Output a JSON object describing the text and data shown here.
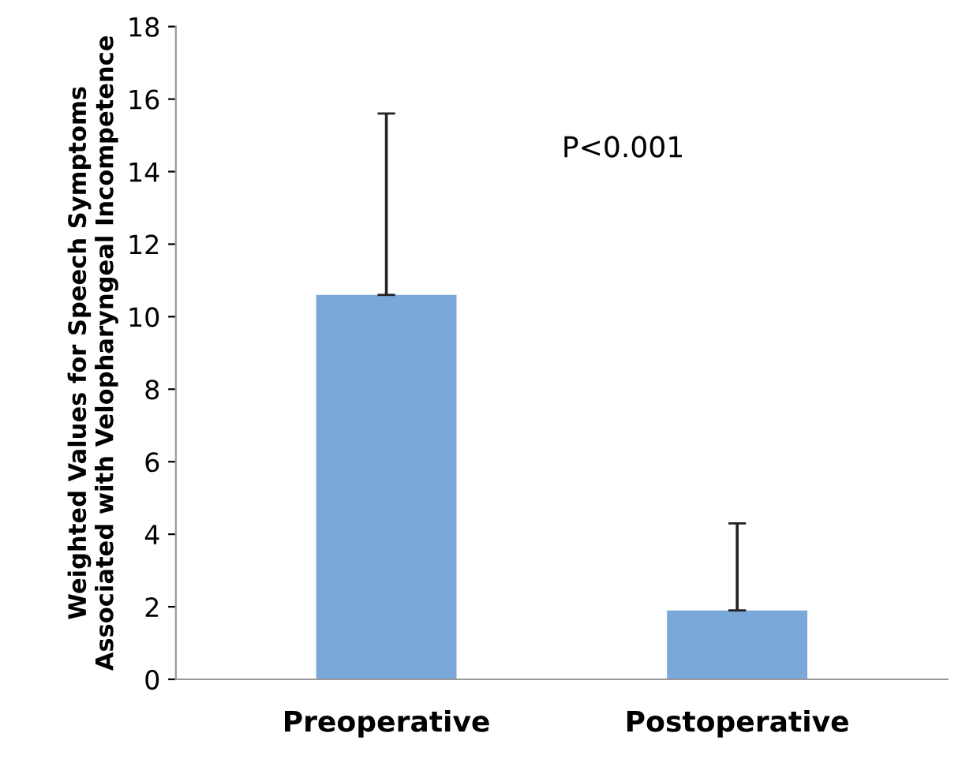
{
  "chart_data": {
    "type": "bar",
    "ylabel": "Weighted Values for Speech Symptoms\nAssociated with Velopharyngeal Incompetence",
    "categories": [
      "Preoperative",
      "Postoperative"
    ],
    "values": [
      10.6,
      1.9
    ],
    "errors": [
      [
        10.6,
        15.6
      ],
      [
        1.9,
        4.3
      ]
    ],
    "color": "#7aa8d8",
    "annotations": [
      "P<0.001"
    ],
    "ylim": [
      0,
      18
    ],
    "yticks": [
      0,
      2,
      4,
      6,
      8,
      10,
      12,
      14,
      16,
      18
    ],
    "grid": false,
    "legend": false
  }
}
